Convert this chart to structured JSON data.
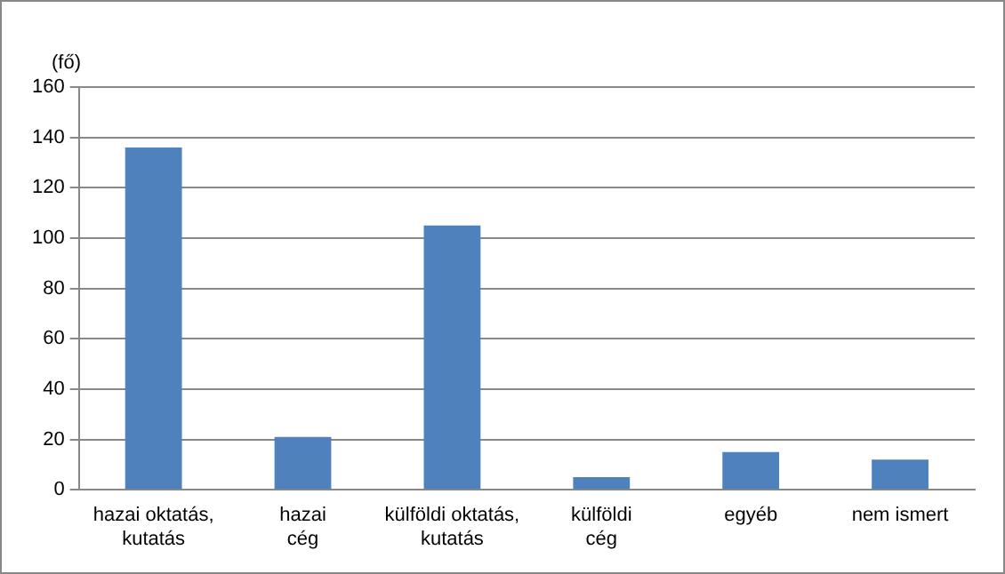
{
  "chart_data": {
    "type": "bar",
    "ylabel": "(fő)",
    "categories": [
      "hazai oktatás,\nkutatás",
      "hazai\ncég",
      "külföldi oktatás,\nkutatás",
      "külföldi\ncég",
      "egyéb",
      "nem ismert"
    ],
    "values": [
      136,
      21,
      105,
      5,
      15,
      12
    ],
    "color": "#4f81bd",
    "ylim": [
      0,
      160
    ],
    "yticks": [
      0,
      20,
      40,
      60,
      80,
      100,
      120,
      140,
      160
    ],
    "grid": "y",
    "legend": false
  }
}
